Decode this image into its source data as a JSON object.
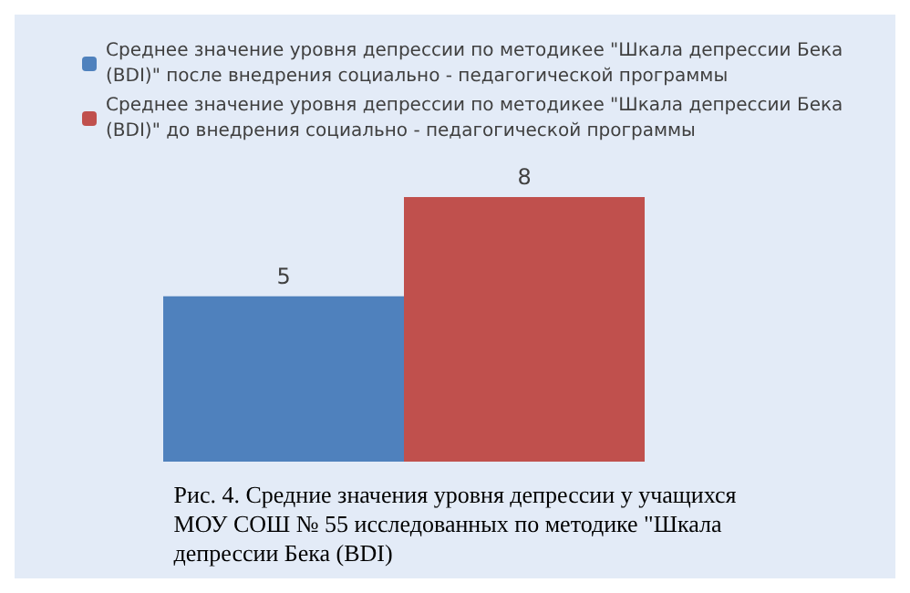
{
  "chart_data": {
    "type": "bar",
    "categories": [
      null
    ],
    "series": [
      {
        "name": "Среднее значение уровня депрессии по методикее \"Шкала депрессии Бека (BDI)\" после внедрения социально - педагогической программы",
        "color": "#4f81bd",
        "values": [
          5
        ]
      },
      {
        "name": "Среднее значение уровня депрессии по методикее \"Шкала депрессии Бека (BDI)\" до внедрения социально - педагогической программы",
        "color": "#c0504d",
        "values": [
          8
        ]
      }
    ],
    "data_labels": true,
    "legend": "top",
    "annotations": [
      "Рис. 4. Средние значения уровня депрессии у учащихся МОУ СОШ № 55 исследованных по методике \"Шкала депрессии Бека (BDI)"
    ]
  }
}
